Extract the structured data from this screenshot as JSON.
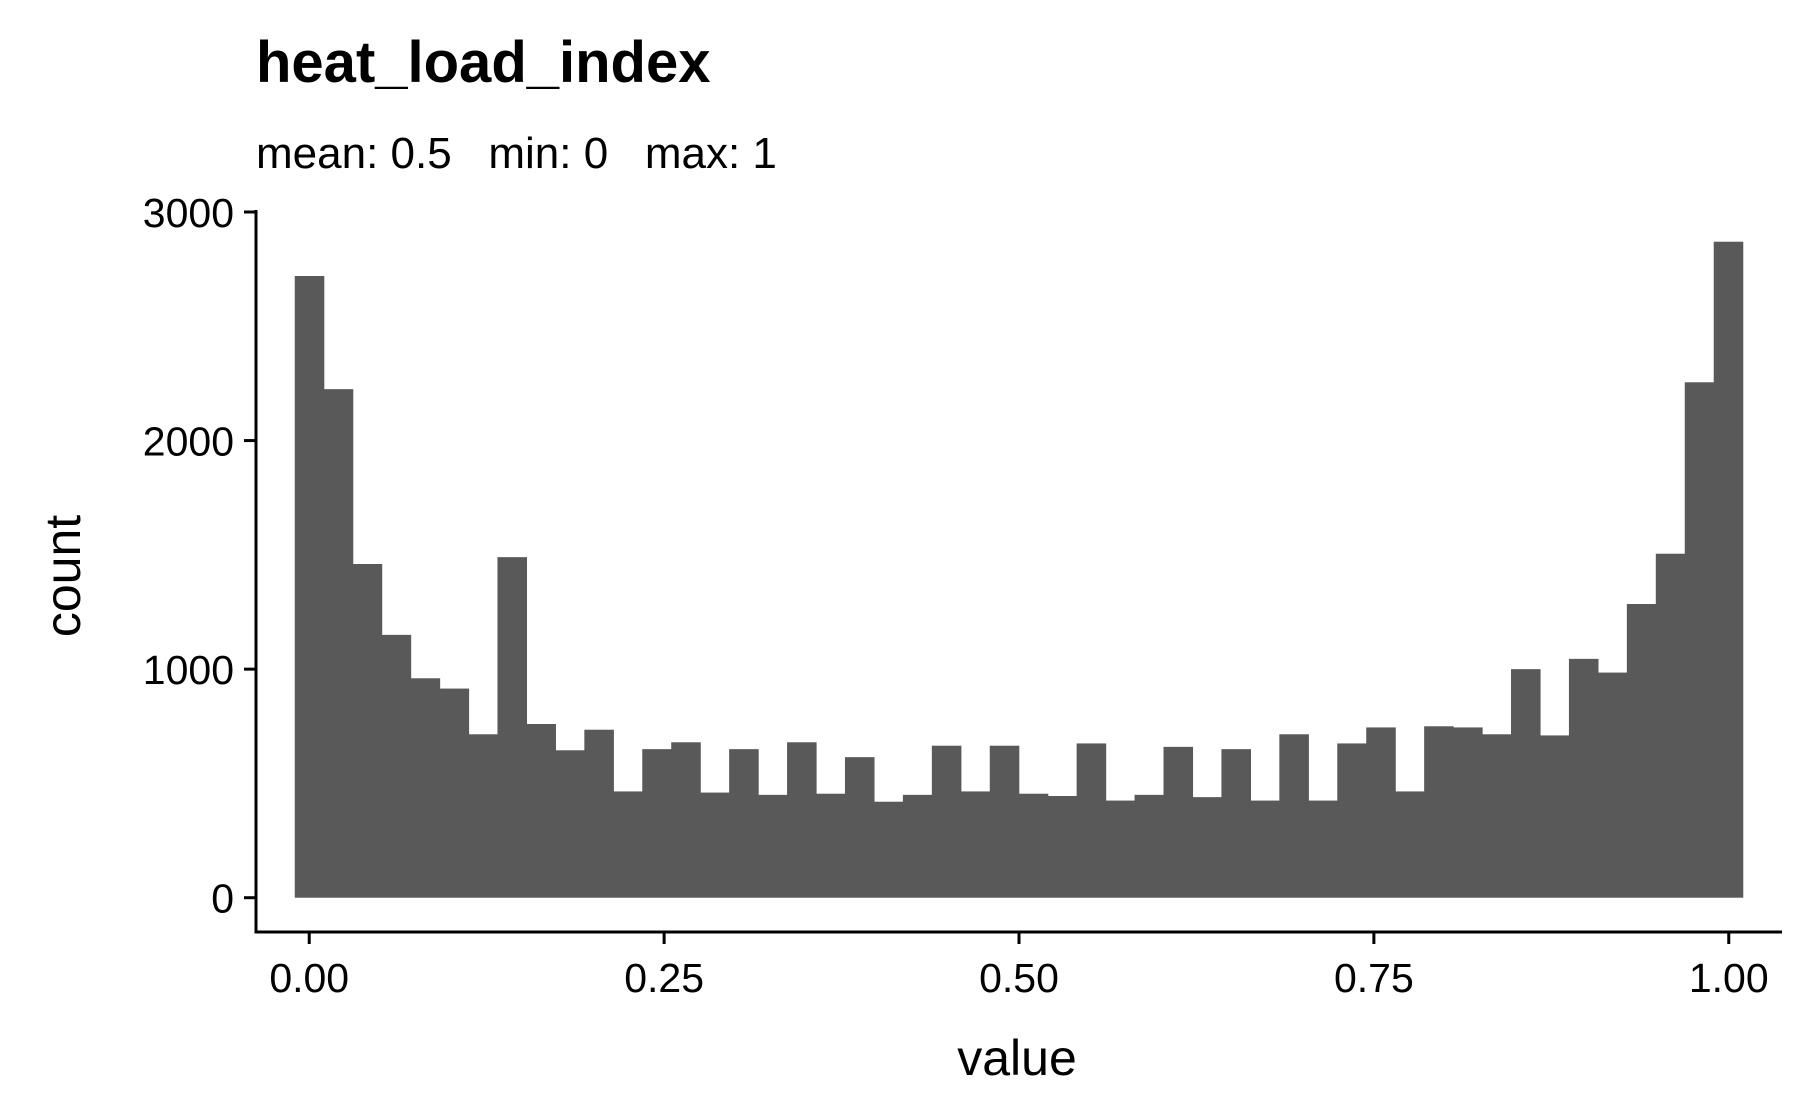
{
  "chart_data": {
    "type": "bar",
    "title": "heat_load_index",
    "subtitle": "mean: 0.5   min: 0   max: 1",
    "xlabel": "value",
    "ylabel": "count",
    "xlim": [
      -0.0375,
      1.0375
    ],
    "ylim": [
      -150,
      3000
    ],
    "xticks": [
      {
        "value": 0.0,
        "label": "0.00"
      },
      {
        "value": 0.25,
        "label": "0.25"
      },
      {
        "value": 0.5,
        "label": "0.50"
      },
      {
        "value": 0.75,
        "label": "0.75"
      },
      {
        "value": 1.0,
        "label": "1.00"
      }
    ],
    "yticks": [
      {
        "value": 0,
        "label": "0"
      },
      {
        "value": 1000,
        "label": "1000"
      },
      {
        "value": 2000,
        "label": "2000"
      },
      {
        "value": 3000,
        "label": "3000"
      }
    ],
    "bin_width": 0.0204,
    "bin_start": -0.0102,
    "values": [
      2720,
      2225,
      1460,
      1150,
      960,
      915,
      715,
      1490,
      760,
      645,
      735,
      465,
      650,
      680,
      460,
      650,
      450,
      680,
      455,
      615,
      420,
      450,
      665,
      465,
      665,
      455,
      445,
      675,
      425,
      450,
      660,
      440,
      650,
      425,
      715,
      425,
      675,
      745,
      465,
      750,
      745,
      715,
      1000,
      710,
      1045,
      985,
      1285,
      1505,
      2255,
      2870
    ],
    "bar_color": "#595959",
    "grid": false,
    "legend": "none"
  }
}
